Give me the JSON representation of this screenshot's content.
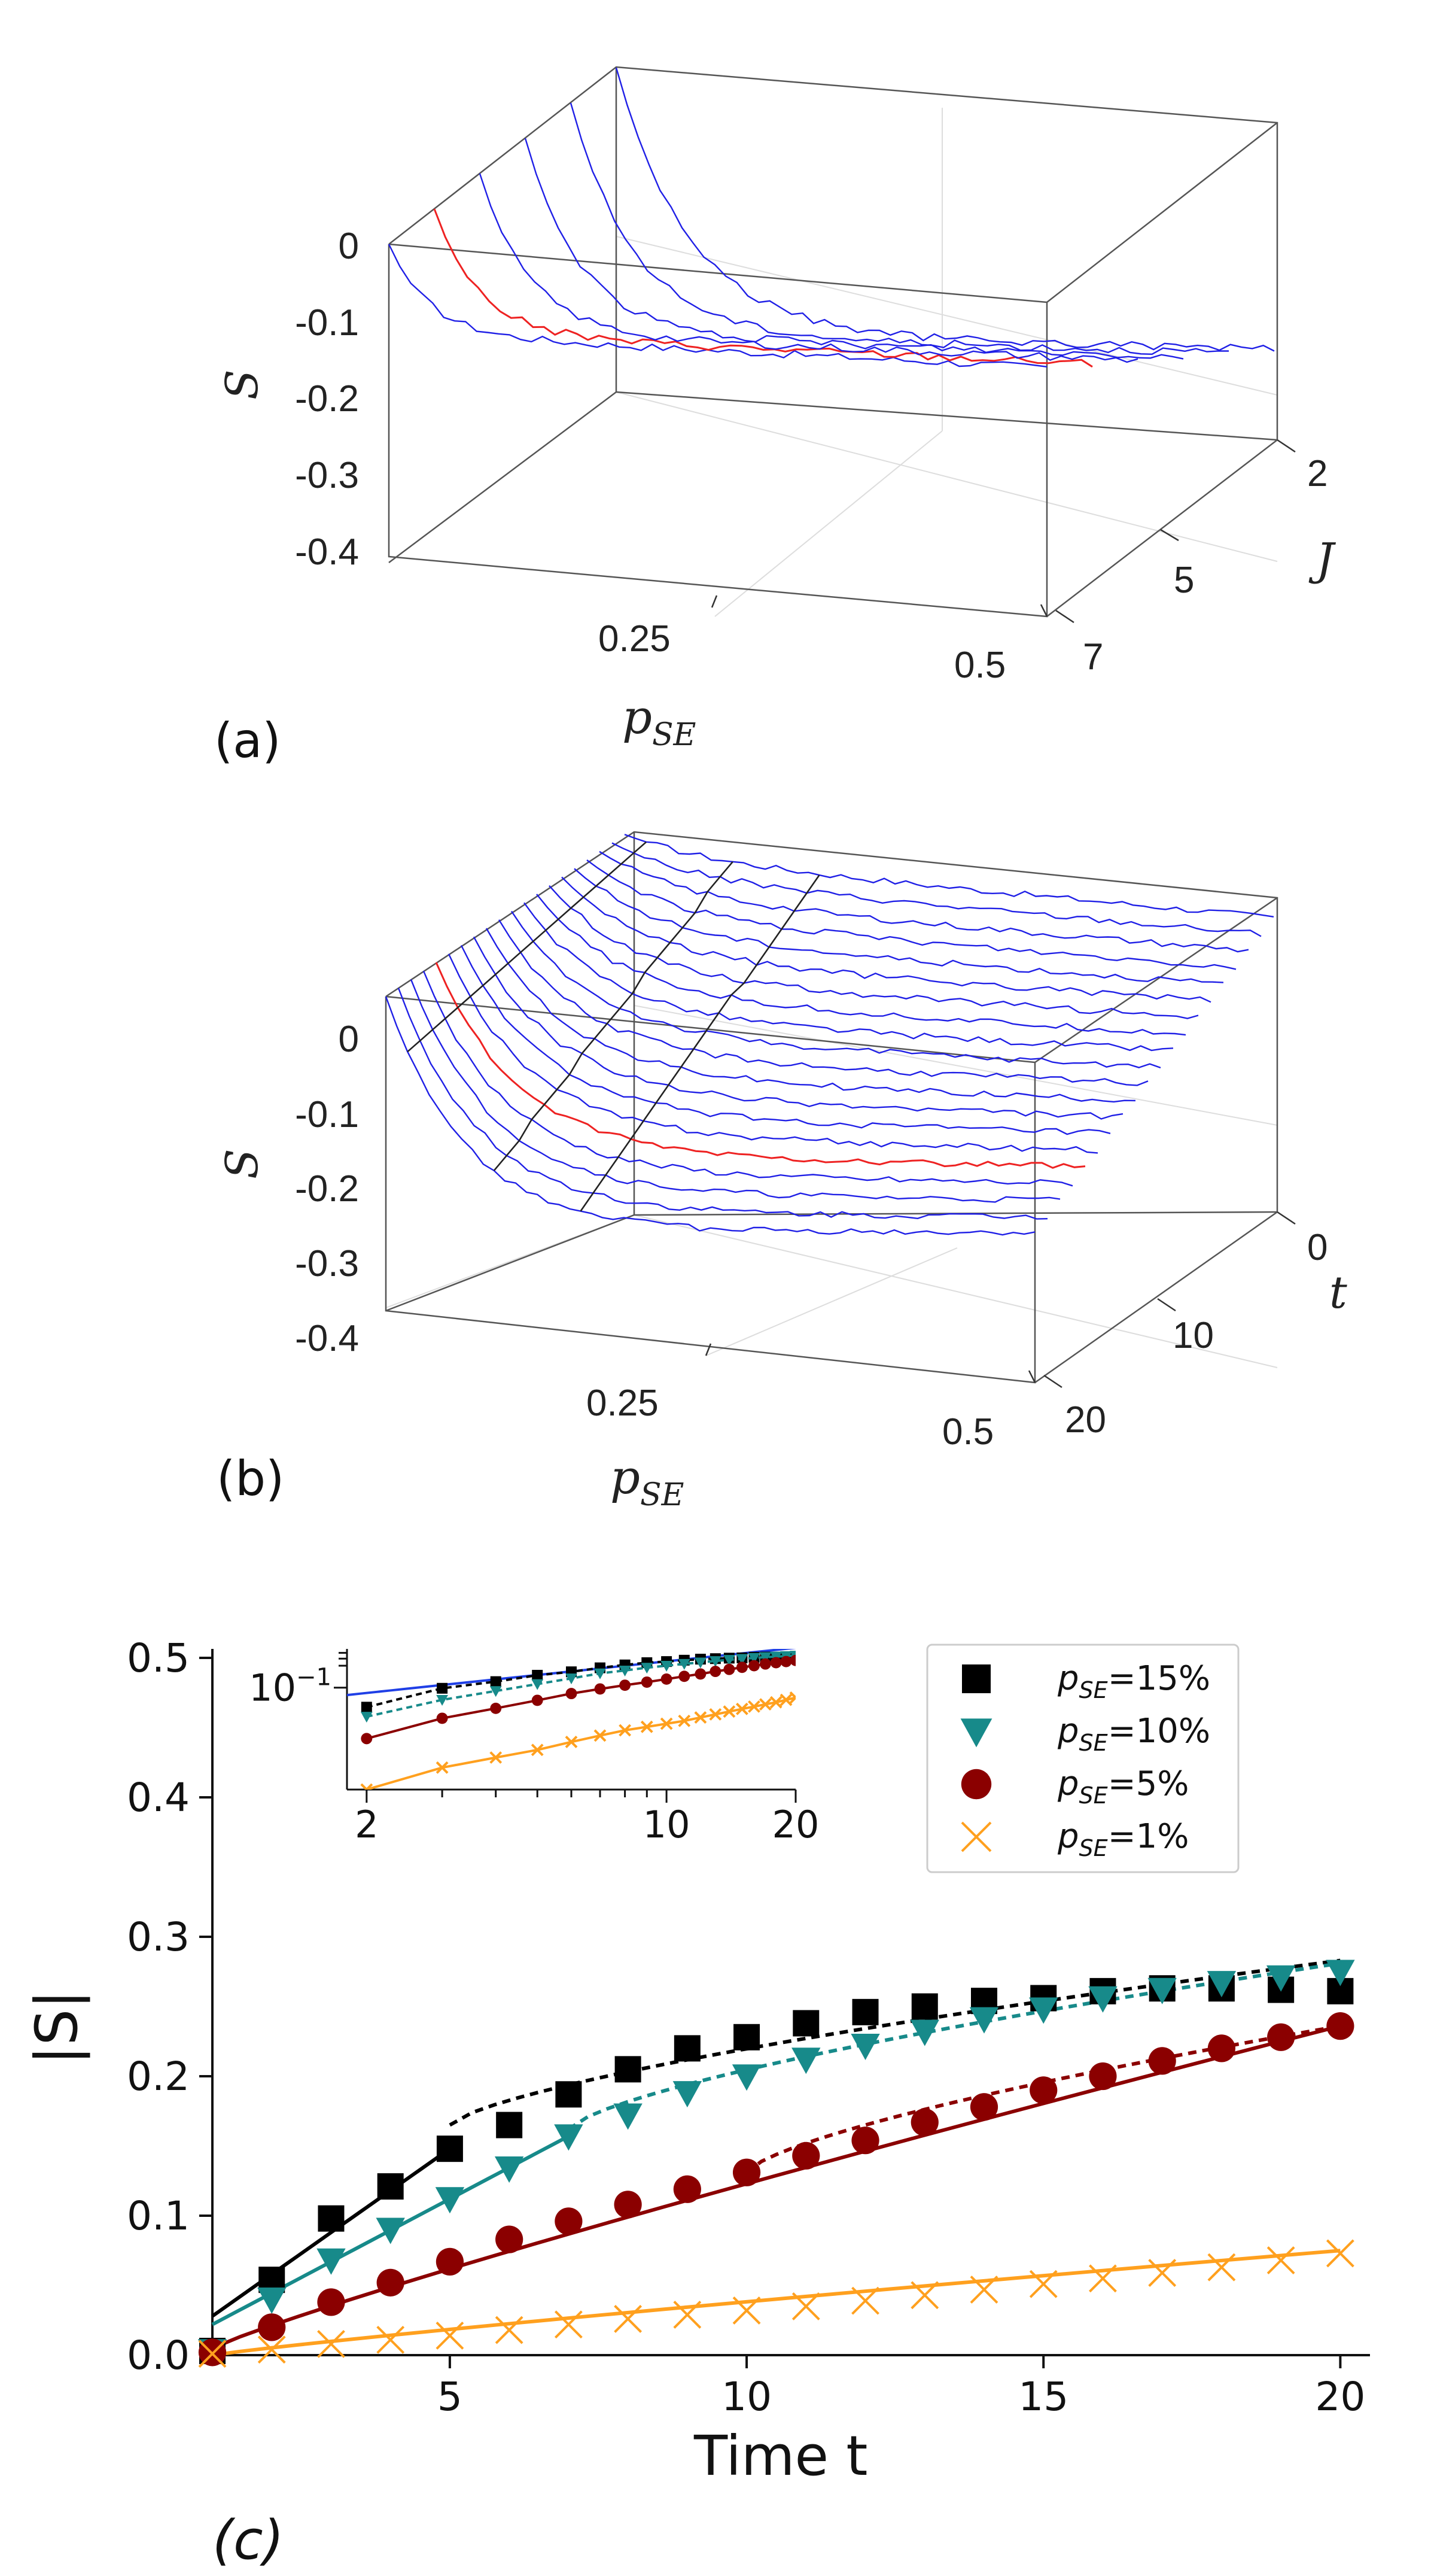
{
  "chart_data": [
    {
      "panel": "a",
      "type": "surface-lines-3d",
      "panel_label": "(a)",
      "zlabel": "S",
      "xlabel": "p",
      "xlabel_sub": "SE",
      "ylabel": "J",
      "x_ticks": [
        "0.25",
        "0.5"
      ],
      "y_ticks": [
        "2",
        "5",
        "7"
      ],
      "z_ticks": [
        "0",
        "-0.1",
        "-0.2",
        "-0.3",
        "-0.4"
      ],
      "zlim": [
        -0.4,
        0
      ],
      "xlim": [
        0,
        0.5
      ],
      "line_count": 6,
      "highlighted_line": 1,
      "colors": {
        "line": "#1f1fe6",
        "highlight": "#ee2222"
      }
    },
    {
      "panel": "b",
      "type": "surface-lines-3d",
      "panel_label": "(b)",
      "zlabel": "S",
      "xlabel": "p",
      "xlabel_sub": "SE",
      "ylabel": "t",
      "x_ticks": [
        "0.25",
        "0.5"
      ],
      "y_ticks": [
        "0",
        "10",
        "20"
      ],
      "z_ticks": [
        "0",
        "-0.1",
        "-0.2",
        "-0.3",
        "-0.4"
      ],
      "zlim": [
        -0.4,
        0
      ],
      "xlim": [
        0,
        0.5
      ],
      "line_count": 20,
      "highlighted_line": 15,
      "colors": {
        "line": "#1f1fe6",
        "highlight": "#ee2222",
        "cross": "#222222"
      }
    },
    {
      "panel": "c",
      "type": "scatter",
      "panel_label": "(c)",
      "xlabel": "Time t",
      "ylabel": "|S|",
      "xlim": [
        1,
        20.5
      ],
      "ylim": [
        0,
        0.5
      ],
      "x_ticks": [
        "5",
        "10",
        "15",
        "20"
      ],
      "y_ticks": [
        "0.0",
        "0.1",
        "0.2",
        "0.3",
        "0.4",
        "0.5"
      ],
      "series": [
        {
          "name": "pSE=15%",
          "legend_main": "p",
          "legend_sub": "SE",
          "legend_value": "=15%",
          "marker": "square",
          "color": "#000000",
          "x": [
            1,
            2,
            3,
            4,
            5,
            6,
            7,
            8,
            9,
            10,
            11,
            12,
            13,
            14,
            15,
            16,
            17,
            18,
            19,
            20
          ],
          "y": [
            0.003,
            0.054,
            0.098,
            0.121,
            0.148,
            0.165,
            0.187,
            0.205,
            0.22,
            0.228,
            0.238,
            0.246,
            0.25,
            0.254,
            0.256,
            0.261,
            0.263,
            0.263,
            0.262,
            0.261
          ]
        },
        {
          "name": "pSE=10%",
          "legend_main": "p",
          "legend_sub": "SE",
          "legend_value": "=10%",
          "marker": "triangle-down",
          "color": "#178a8a",
          "x": [
            1,
            2,
            3,
            4,
            5,
            6,
            7,
            8,
            9,
            10,
            11,
            12,
            13,
            14,
            15,
            16,
            17,
            18,
            19,
            20
          ],
          "y": [
            0.003,
            0.04,
            0.068,
            0.09,
            0.112,
            0.134,
            0.157,
            0.172,
            0.188,
            0.2,
            0.212,
            0.222,
            0.232,
            0.241,
            0.248,
            0.256,
            0.262,
            0.267,
            0.271,
            0.275
          ]
        },
        {
          "name": "pSE=5%",
          "legend_main": "p",
          "legend_sub": "SE",
          "legend_value": "=5%",
          "marker": "circle",
          "color": "#8b0000",
          "x": [
            1,
            2,
            3,
            4,
            5,
            6,
            7,
            8,
            9,
            10,
            11,
            12,
            13,
            14,
            15,
            16,
            17,
            18,
            19,
            20
          ],
          "y": [
            0.002,
            0.02,
            0.038,
            0.052,
            0.067,
            0.083,
            0.096,
            0.108,
            0.119,
            0.131,
            0.143,
            0.154,
            0.167,
            0.178,
            0.19,
            0.2,
            0.211,
            0.22,
            0.228,
            0.236
          ]
        },
        {
          "name": "pSE=1%",
          "legend_main": "p",
          "legend_sub": "SE",
          "legend_value": "=1%",
          "marker": "x",
          "color": "#ffa01e",
          "x": [
            1,
            2,
            3,
            4,
            5,
            6,
            7,
            8,
            9,
            10,
            11,
            12,
            13,
            14,
            15,
            16,
            17,
            18,
            19,
            20
          ],
          "y": [
            0.001,
            0.004,
            0.008,
            0.011,
            0.014,
            0.018,
            0.022,
            0.026,
            0.029,
            0.032,
            0.035,
            0.039,
            0.043,
            0.047,
            0.051,
            0.055,
            0.059,
            0.063,
            0.068,
            0.073
          ]
        }
      ],
      "fits": [
        {
          "series": 0,
          "solid_range": [
            1,
            5
          ],
          "dashed_range": [
            5,
            20
          ],
          "solid_y": [
            0.028,
            0.148
          ],
          "dashed_y": [
            0.165,
            0.283
          ]
        },
        {
          "series": 1,
          "solid_range": [
            1,
            7
          ],
          "dashed_range": [
            7,
            20
          ],
          "solid_y": [
            0.022,
            0.157
          ],
          "dashed_y": [
            0.162,
            0.281
          ]
        },
        {
          "series": 2,
          "solid_range": [
            1,
            20
          ],
          "dashed_range": [
            10,
            20
          ],
          "solid_y": [
            0.005,
            0.236
          ],
          "dashed_y": [
            0.131,
            0.236
          ]
        },
        {
          "series": 3,
          "solid_range": [
            1,
            20
          ],
          "dashed_range": [
            1,
            1
          ],
          "solid_y": [
            0.0,
            0.075
          ],
          "dashed_y": [
            0,
            0
          ]
        }
      ],
      "inset": {
        "type": "loglog",
        "x_ticks": [
          "2",
          "10",
          "20"
        ],
        "y_tick": "10",
        "y_tick_exp": "−1",
        "xlim": [
          1.8,
          20
        ],
        "extra_line_color": "#1f3fe6"
      }
    }
  ]
}
